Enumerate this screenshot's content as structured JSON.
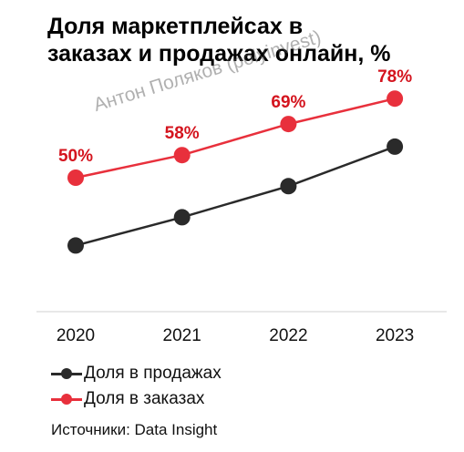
{
  "title_lines": [
    "Доля маркетплейсах в",
    "заказах и продажах онлайн, %"
  ],
  "watermark": "Антон Поляков (polyinvest)",
  "source": "Источники: Data Insight",
  "colors": {
    "orders": "#e8303c",
    "sales": "#2a2a2a",
    "label": "#d4141e",
    "axis": "#d0d0d0"
  },
  "chart_data": {
    "type": "line",
    "title": "Доля маркетплейсах в заказах и продажах онлайн, %",
    "x": [
      "2020",
      "2021",
      "2022",
      "2023"
    ],
    "ylim": [
      0,
      100
    ],
    "grid": false,
    "legend_placement": "bottom-left",
    "series": [
      {
        "name": "Доля в продажах",
        "key": "sales",
        "values": [
          26,
          36,
          47,
          61
        ],
        "labels": [
          "",
          "",
          "",
          ""
        ]
      },
      {
        "name": "Доля в заказах",
        "key": "orders",
        "values": [
          50,
          58,
          69,
          78
        ],
        "labels": [
          "50%",
          "58%",
          "69%",
          "78%"
        ]
      }
    ]
  }
}
